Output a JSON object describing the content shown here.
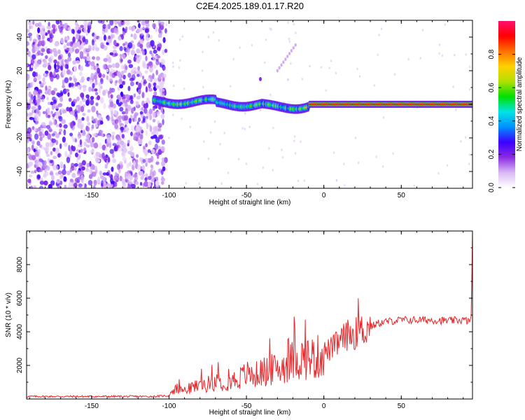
{
  "title": "C2E4.2025.189.01.17.R20",
  "chart_data": [
    {
      "type": "heatmap",
      "xlabel": "Height of straight line (km)",
      "ylabel": "Frequency (Hz)",
      "xlim": [
        -192,
        96
      ],
      "ylim": [
        -50,
        50
      ],
      "xticks": [
        -150,
        -100,
        -50,
        0,
        50
      ],
      "yticks": [
        -40,
        -20,
        0,
        20,
        40
      ],
      "colorbar": {
        "label": "Normalized spectral amplitude",
        "range": [
          0.0,
          1.0
        ],
        "ticks": [
          0.0,
          0.2,
          0.4,
          0.6,
          0.8
        ],
        "colormap": [
          "#ffffff",
          "#d9b8f5",
          "#8a2be2",
          "#3a00ff",
          "#0090ff",
          "#00e5e5",
          "#00e000",
          "#b0e000",
          "#ffd000",
          "#ff7000",
          "#ff0000",
          "#ff1070"
        ]
      },
      "description_regions": {
        "noise_region_x": [
          -192,
          -102
        ],
        "signal_ridge_frequency_hz": 0,
        "signal_start_x": -110
      }
    },
    {
      "type": "line",
      "xlabel": "Height of straight line (km)",
      "ylabel": "SNR (10 * v/v)",
      "xlim": [
        -192,
        96
      ],
      "ylim": [
        0,
        10000
      ],
      "xticks": [
        -150,
        -100,
        -50,
        0,
        50
      ],
      "yticks": [
        2000,
        4000,
        6000,
        8000
      ],
      "line_color": "#e8262a",
      "series": [
        {
          "x": [
            -192,
            -150,
            -110,
            -100,
            -95,
            -90,
            -85,
            -80,
            -75,
            -70,
            -65,
            -60,
            -55,
            -50,
            -45,
            -40,
            -35,
            -30,
            -25,
            -20,
            -15,
            -10,
            -5,
            0,
            5,
            10,
            15,
            20,
            25,
            30,
            35,
            40,
            45,
            50,
            60,
            70,
            80,
            90,
            95,
            96
          ],
          "y": [
            150,
            150,
            150,
            200,
            600,
            500,
            700,
            800,
            900,
            1000,
            1000,
            1100,
            1200,
            1500,
            1400,
            1600,
            1700,
            1800,
            2000,
            2300,
            2400,
            2500,
            2400,
            2800,
            3000,
            3400,
            3800,
            3900,
            4100,
            4300,
            4500,
            4600,
            4650,
            4700,
            4700,
            4700,
            4650,
            4700,
            4600,
            9500
          ]
        }
      ]
    }
  ]
}
